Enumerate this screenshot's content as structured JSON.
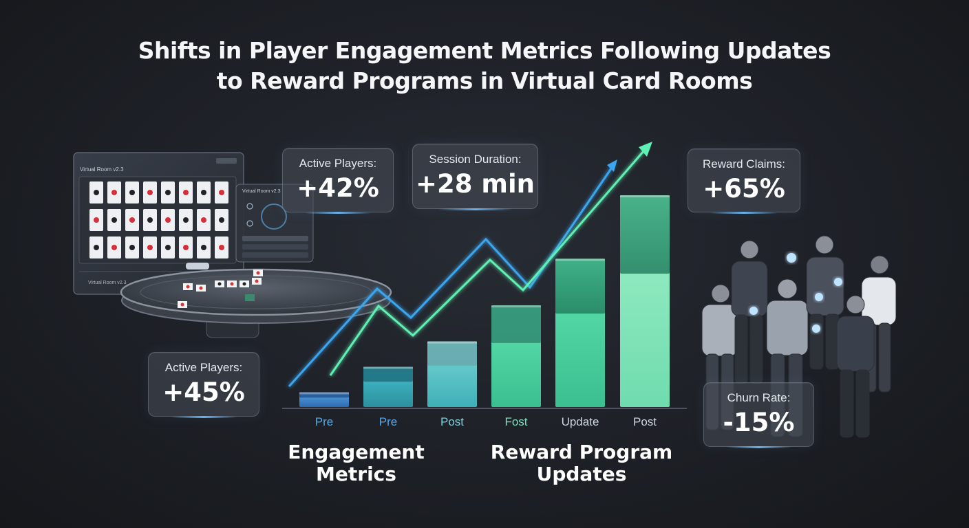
{
  "title_line1": "Shifts in Player Engagement Metrics Following Updates",
  "title_line2": "to Reward Programs in Virtual Card Rooms",
  "callouts": {
    "active_players_top": {
      "label": "Active Players:",
      "value": "+42%"
    },
    "session_duration": {
      "label": "Session Duration:",
      "value": "+28 min"
    },
    "reward_claims": {
      "label": "Reward Claims:",
      "value": "+65%"
    },
    "active_players_left": {
      "label": "Active Players:",
      "value": "+45%"
    },
    "churn_rate": {
      "label": "Churn Rate:",
      "value": "-15%"
    }
  },
  "chart_data": {
    "type": "bar",
    "categories": [
      "Pre",
      "Pre",
      "Post",
      "Fost",
      "Update",
      "Post"
    ],
    "values": [
      7,
      19,
      31,
      48,
      70,
      100
    ],
    "ylim": [
      0,
      100
    ],
    "grid": false
  },
  "captions": {
    "left_line1": "Engagement",
    "left_line2": "Metrics",
    "right_line1": "Reward Program",
    "right_line2": "Updates"
  },
  "ui_mock": {
    "window_title": "Virtual Room v2.3",
    "window_footer": "Virtual Room v2.3",
    "panel_title": "Virtual Room v2.3"
  },
  "colors": {
    "bar_blue": "#3f86c9",
    "bar_teal": "#3fb8c4",
    "bar_green": "#4fd7a0",
    "line_blue": "#3aa6f0",
    "line_green": "#5ef0b4",
    "label_blue": "#58a8e8",
    "label_light": "#cfd8e0"
  },
  "icons": [
    "playing-card-icon",
    "poker-table-icon",
    "people-group-icon",
    "trend-arrow-icon"
  ]
}
